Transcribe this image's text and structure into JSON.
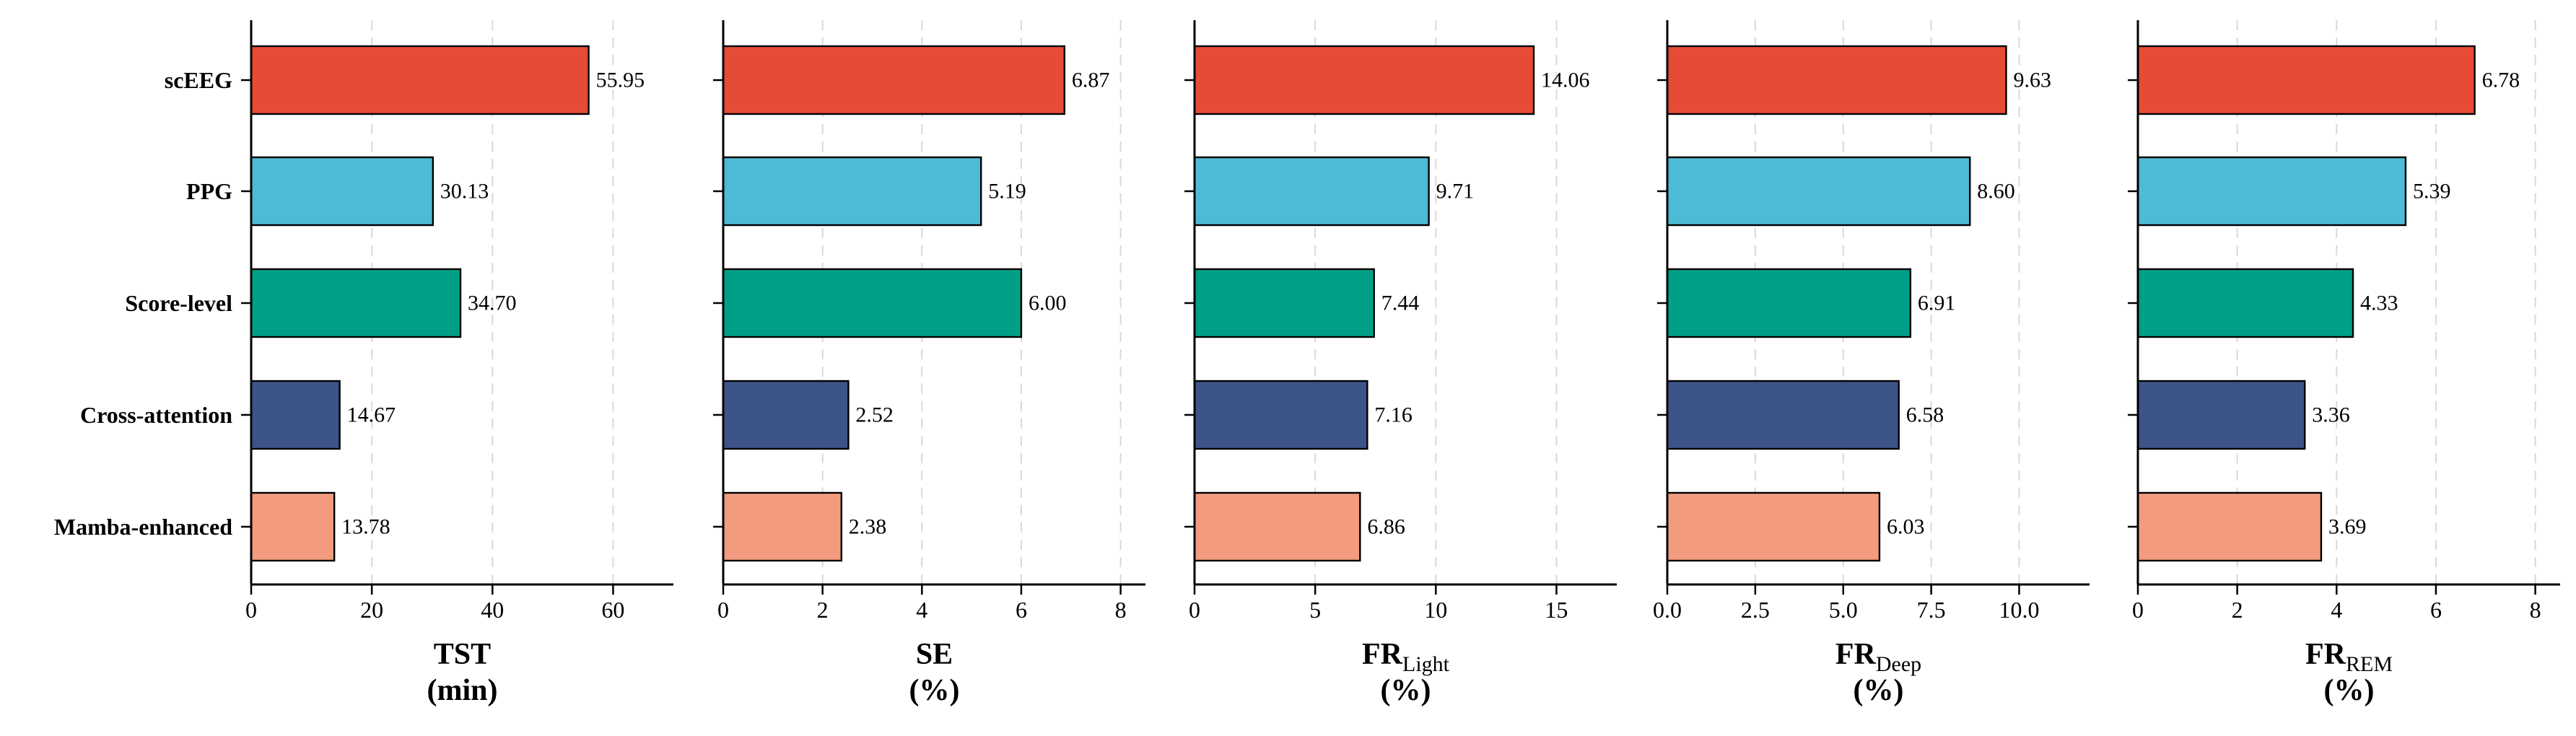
{
  "chart_data": [
    {
      "type": "bar",
      "orientation": "horizontal",
      "categories": [
        "scEEG",
        "PPG",
        "Score-level",
        "Cross-attention",
        "Mamba-enhanced"
      ],
      "values": [
        55.95,
        30.13,
        34.7,
        14.67,
        13.78
      ],
      "value_labels": [
        "55.95",
        "30.13",
        "34.70",
        "14.67",
        "13.78"
      ],
      "xlabel": {
        "main": "TST",
        "sub": "",
        "unit": "(min)"
      },
      "xlim": [
        0,
        70
      ],
      "xticks": [
        0,
        20,
        40,
        60
      ],
      "xtick_labels": [
        "0",
        "20",
        "40",
        "60"
      ],
      "show_category_labels": true
    },
    {
      "type": "bar",
      "orientation": "horizontal",
      "categories": [
        "scEEG",
        "PPG",
        "Score-level",
        "Cross-attention",
        "Mamba-enhanced"
      ],
      "values": [
        6.87,
        5.19,
        6.0,
        2.52,
        2.38
      ],
      "value_labels": [
        "6.87",
        "5.19",
        "6.00",
        "2.52",
        "2.38"
      ],
      "xlabel": {
        "main": "SE",
        "sub": "",
        "unit": "(%)"
      },
      "xlim": [
        0,
        8.5
      ],
      "xticks": [
        0,
        2,
        4,
        6,
        8
      ],
      "xtick_labels": [
        "0",
        "2",
        "4",
        "6",
        "8"
      ],
      "show_category_labels": false
    },
    {
      "type": "bar",
      "orientation": "horizontal",
      "categories": [
        "scEEG",
        "PPG",
        "Score-level",
        "Cross-attention",
        "Mamba-enhanced"
      ],
      "values": [
        14.06,
        9.71,
        7.44,
        7.16,
        6.86
      ],
      "value_labels": [
        "14.06",
        "9.71",
        "7.44",
        "7.16",
        "6.86"
      ],
      "xlabel": {
        "main": "FR",
        "sub": "Light",
        "unit": "(%)"
      },
      "xlim": [
        0,
        17.5
      ],
      "xticks": [
        0,
        5,
        10,
        15
      ],
      "xtick_labels": [
        "0",
        "5",
        "10",
        "15"
      ],
      "show_category_labels": false
    },
    {
      "type": "bar",
      "orientation": "horizontal",
      "categories": [
        "scEEG",
        "PPG",
        "Score-level",
        "Cross-attention",
        "Mamba-enhanced"
      ],
      "values": [
        9.63,
        8.6,
        6.91,
        6.58,
        6.03
      ],
      "value_labels": [
        "9.63",
        "8.60",
        "6.91",
        "6.58",
        "6.03"
      ],
      "xlabel": {
        "main": "FR",
        "sub": "Deep",
        "unit": "(%)"
      },
      "xlim": [
        0,
        12
      ],
      "xticks": [
        0,
        2.5,
        5,
        7.5,
        10
      ],
      "xtick_labels": [
        "0.0",
        "2.5",
        "5.0",
        "7.5",
        "10.0"
      ],
      "show_category_labels": false
    },
    {
      "type": "bar",
      "orientation": "horizontal",
      "categories": [
        "scEEG",
        "PPG",
        "Score-level",
        "Cross-attention",
        "Mamba-enhanced"
      ],
      "values": [
        6.78,
        5.39,
        4.33,
        3.36,
        3.69
      ],
      "value_labels": [
        "6.78",
        "5.39",
        "4.33",
        "3.36",
        "3.69"
      ],
      "xlabel": {
        "main": "FR",
        "sub": "REM",
        "unit": "(%)"
      },
      "xlim": [
        0,
        8.5
      ],
      "xticks": [
        0,
        2,
        4,
        6,
        8
      ],
      "xtick_labels": [
        "0",
        "2",
        "4",
        "6",
        "8"
      ],
      "show_category_labels": false
    }
  ],
  "colors": {
    "scEEG": "#e64b35",
    "PPG": "#4dbbd5",
    "Score-level": "#00a087",
    "Cross-attention": "#3c5488",
    "Mamba-enhanced": "#f39b7f"
  },
  "grid": "vertical-dashed"
}
